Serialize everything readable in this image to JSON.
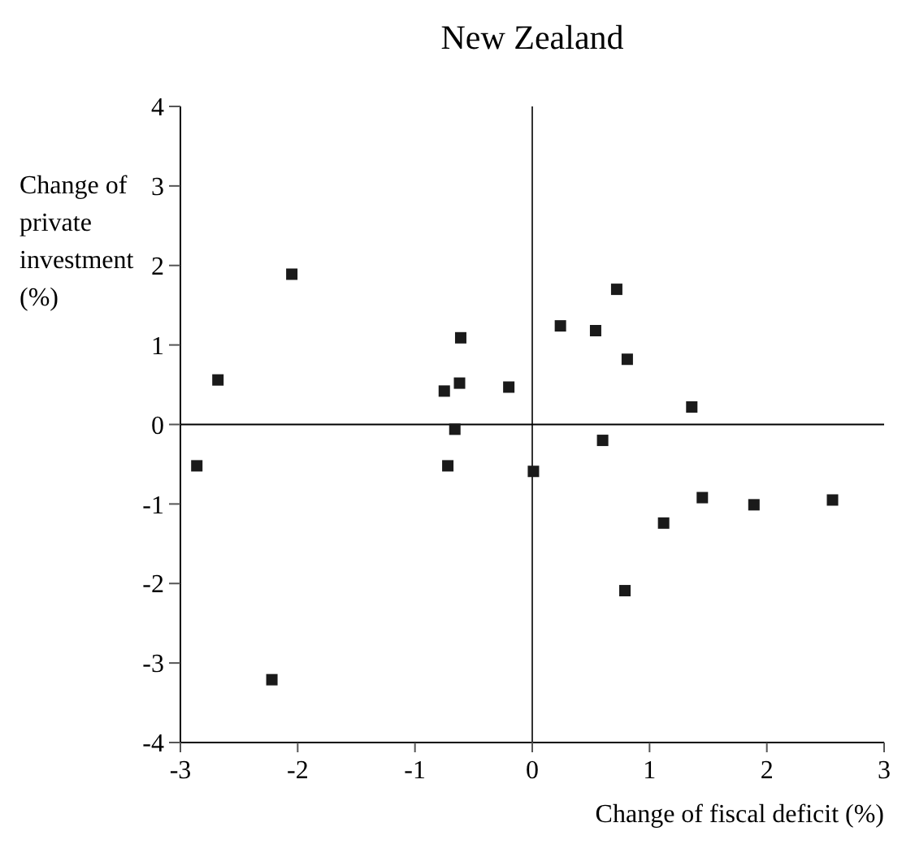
{
  "chart_data": {
    "type": "scatter",
    "title": "New Zealand",
    "xlabel": "Change of fiscal deficit (%)",
    "ylabel": "Change of\nprivate\ninvestment\n(%)",
    "x": [
      -2.86,
      -2.68,
      -2.05,
      -0.61,
      -0.75,
      -0.62,
      -0.2,
      -0.66,
      -0.72,
      0.01,
      0.72,
      0.24,
      0.54,
      0.81,
      1.36,
      0.6,
      1.45,
      1.89,
      2.56,
      1.12,
      0.79,
      -2.22
    ],
    "series": [
      {
        "color": "#1a1a1a",
        "values": [
          -0.52,
          0.56,
          1.89,
          1.09,
          0.42,
          0.52,
          0.47,
          -0.06,
          -0.52,
          -0.59,
          1.7,
          1.24,
          1.18,
          0.82,
          0.22,
          -0.2,
          -0.92,
          -1.01,
          -0.95,
          -1.24,
          -2.09,
          -3.21
        ]
      }
    ],
    "xlim": [
      -3,
      3
    ],
    "xticks": [
      -3,
      -2,
      -1,
      0,
      1,
      2,
      3
    ],
    "ylim": [
      -4,
      4
    ],
    "yticks": [
      -4,
      -3,
      -2,
      -1,
      0,
      1,
      2,
      3,
      4
    ],
    "ref_lines": [
      {
        "axis": "x",
        "value": 0
      },
      {
        "axis": "y",
        "value": 0
      }
    ],
    "marker": "square",
    "grid": false
  }
}
